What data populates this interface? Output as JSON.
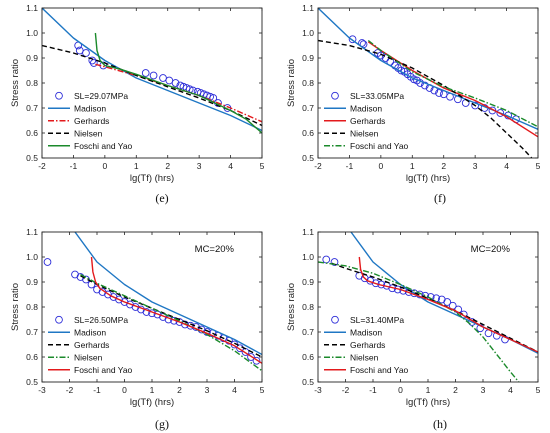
{
  "figure": {
    "captions": [
      "(e)",
      "(f)",
      "(g)",
      "(h)"
    ]
  },
  "chart_data": [
    {
      "id": "e",
      "type": "line",
      "caption": "(e)",
      "xlabel": "lg(Tf) (hrs)",
      "ylabel": "Stress ratio",
      "xlim": [
        -2,
        5
      ],
      "ylim": [
        0.5,
        1.1
      ],
      "xticks": [
        "-2",
        "-1",
        "0",
        "1",
        "2",
        "3",
        "4",
        "5"
      ],
      "yticks": [
        "0.5",
        "0.6",
        "0.7",
        "0.8",
        "0.9",
        "1.0",
        "1.1"
      ],
      "annotation": "",
      "legend_position": "lower-left",
      "points": {
        "name": "SL=29.07MPa",
        "color": "#2b2bd8",
        "x": [
          -0.85,
          -0.8,
          -0.6,
          -0.4,
          -0.35,
          -0.05,
          1.3,
          1.55,
          1.85,
          2.05,
          2.25,
          2.4,
          2.5,
          2.6,
          2.7,
          2.8,
          2.95,
          3.05,
          3.15,
          3.25,
          3.35,
          3.45,
          3.6,
          3.9
        ],
        "y": [
          0.95,
          0.93,
          0.92,
          0.89,
          0.88,
          0.87,
          0.84,
          0.83,
          0.82,
          0.81,
          0.8,
          0.79,
          0.785,
          0.78,
          0.775,
          0.77,
          0.765,
          0.76,
          0.755,
          0.75,
          0.745,
          0.74,
          0.72,
          0.7
        ]
      },
      "series": [
        {
          "name": "Madison",
          "color": "#1f77c4",
          "dash": "",
          "x": [
            -2,
            -1,
            0,
            1,
            2,
            3,
            4,
            5
          ],
          "y": [
            1.1,
            0.98,
            0.89,
            0.82,
            0.77,
            0.72,
            0.67,
            0.61
          ]
        },
        {
          "name": "Gerhards",
          "color": "#e31a1c",
          "dash": "6,2,1.5,2",
          "x": [
            -0.3,
            0,
            1,
            2,
            3,
            4,
            5
          ],
          "y": [
            0.875,
            0.865,
            0.83,
            0.79,
            0.75,
            0.7,
            0.645
          ]
        },
        {
          "name": "Nielsen",
          "color": "#000000",
          "dash": "5,3",
          "x": [
            -2,
            -1,
            0,
            1,
            2,
            3,
            4,
            5
          ],
          "y": [
            0.95,
            0.92,
            0.88,
            0.83,
            0.785,
            0.74,
            0.69,
            0.63
          ]
        },
        {
          "name": "Foschi and Yao",
          "color": "#1b8a2b",
          "dash": "",
          "x": [
            -0.3,
            -0.25,
            -0.15,
            0,
            0.5,
            1,
            2,
            3,
            4,
            4.5,
            5
          ],
          "y": [
            1.0,
            0.93,
            0.89,
            0.87,
            0.855,
            0.835,
            0.79,
            0.75,
            0.69,
            0.655,
            0.6
          ]
        }
      ]
    },
    {
      "id": "f",
      "type": "line",
      "caption": "(f)",
      "xlabel": "lg(Tf) (hrs)",
      "ylabel": "Stress ratio",
      "xlim": [
        -2,
        5
      ],
      "ylim": [
        0.5,
        1.1
      ],
      "xticks": [
        "-2",
        "-1",
        "0",
        "1",
        "2",
        "3",
        "4",
        "5"
      ],
      "yticks": [
        "0.5",
        "0.6",
        "0.7",
        "0.8",
        "0.9",
        "1.0",
        "1.1"
      ],
      "annotation": "",
      "legend_position": "lower-left",
      "points": {
        "name": "SL=33.05MPa",
        "color": "#2b2bd8",
        "x": [
          -0.9,
          -0.6,
          -0.55,
          -0.1,
          0.0,
          0.15,
          0.3,
          0.45,
          0.55,
          0.65,
          0.75,
          0.85,
          0.95,
          1.05,
          1.15,
          1.25,
          1.4,
          1.55,
          1.7,
          1.85,
          2.0,
          2.2,
          2.45,
          2.7,
          3.0,
          3.3,
          3.55,
          3.8,
          4.05,
          4.3
        ],
        "y": [
          0.975,
          0.96,
          0.955,
          0.92,
          0.91,
          0.9,
          0.885,
          0.87,
          0.86,
          0.85,
          0.845,
          0.835,
          0.825,
          0.815,
          0.81,
          0.8,
          0.79,
          0.78,
          0.77,
          0.76,
          0.755,
          0.745,
          0.735,
          0.72,
          0.71,
          0.7,
          0.69,
          0.68,
          0.67,
          0.655
        ]
      },
      "series": [
        {
          "name": "Madison",
          "color": "#1f77c4",
          "dash": "",
          "x": [
            -2,
            -1,
            0,
            1,
            2,
            3,
            4,
            5
          ],
          "y": [
            1.1,
            0.98,
            0.89,
            0.82,
            0.77,
            0.72,
            0.67,
            0.615
          ]
        },
        {
          "name": "Gerhards",
          "color": "#e31a1c",
          "dash": "",
          "x": [
            -0.4,
            0,
            1,
            2,
            3,
            4,
            5
          ],
          "y": [
            0.965,
            0.93,
            0.85,
            0.78,
            0.73,
            0.665,
            0.585
          ]
        },
        {
          "name": "Nielsen",
          "color": "#000000",
          "dash": "5,3",
          "x": [
            -2,
            -1,
            0,
            1,
            2,
            2.5,
            3,
            3.5,
            4,
            4.5,
            4.8
          ],
          "y": [
            0.97,
            0.95,
            0.915,
            0.86,
            0.79,
            0.75,
            0.71,
            0.66,
            0.6,
            0.54,
            0.5
          ]
        },
        {
          "name": "Foschi and Yao",
          "color": "#1b8a2b",
          "dash": "6,2,1.5,2",
          "x": [
            -0.4,
            0,
            1,
            2,
            3,
            4,
            5
          ],
          "y": [
            0.97,
            0.93,
            0.845,
            0.785,
            0.74,
            0.69,
            0.625
          ]
        }
      ]
    },
    {
      "id": "g",
      "type": "line",
      "caption": "(g)",
      "xlabel": "lg(Tf) (hrs)",
      "ylabel": "Stress ratio",
      "xlim": [
        -3,
        5
      ],
      "ylim": [
        0.5,
        1.1
      ],
      "xticks": [
        "-3",
        "-2",
        "-1",
        "0",
        "1",
        "2",
        "3",
        "4",
        "5"
      ],
      "yticks": [
        "0.5",
        "0.6",
        "0.7",
        "0.8",
        "0.9",
        "1.0",
        "1.1"
      ],
      "annotation": "MC=20%",
      "legend_position": "lower-left",
      "points": {
        "name": "SL=26.50MPa",
        "color": "#2b2bd8",
        "x": [
          -2.8,
          -1.8,
          -1.6,
          -1.4,
          -1.2,
          -1.0,
          -0.8,
          -0.6,
          -0.4,
          -0.2,
          0.0,
          0.2,
          0.4,
          0.6,
          0.8,
          1.0,
          1.2,
          1.4,
          1.6,
          1.8,
          2.0,
          2.2,
          2.4,
          2.6,
          2.8,
          3.0,
          3.2,
          3.4,
          3.6,
          3.8,
          4.0,
          4.2,
          4.4,
          4.6,
          4.8
        ],
        "y": [
          0.98,
          0.93,
          0.92,
          0.91,
          0.89,
          0.87,
          0.86,
          0.85,
          0.84,
          0.83,
          0.82,
          0.81,
          0.8,
          0.79,
          0.78,
          0.775,
          0.77,
          0.76,
          0.75,
          0.745,
          0.74,
          0.73,
          0.725,
          0.72,
          0.71,
          0.7,
          0.695,
          0.685,
          0.675,
          0.665,
          0.65,
          0.635,
          0.62,
          0.6,
          0.585
        ]
      },
      "series": [
        {
          "name": "Madison",
          "color": "#1f77c4",
          "dash": "",
          "x": [
            -1.8,
            -1,
            0,
            1,
            2,
            3,
            4,
            5
          ],
          "y": [
            1.1,
            0.98,
            0.89,
            0.82,
            0.77,
            0.72,
            0.67,
            0.61
          ]
        },
        {
          "name": "Gerhards",
          "color": "#000000",
          "dash": "5,3",
          "x": [
            -1.6,
            -1,
            0,
            1,
            2,
            3,
            4,
            5
          ],
          "y": [
            0.925,
            0.89,
            0.84,
            0.795,
            0.75,
            0.705,
            0.655,
            0.6
          ]
        },
        {
          "name": "Nielsen",
          "color": "#1b8a2b",
          "dash": "6,2,1.5,2",
          "x": [
            -1.6,
            -1,
            0,
            1,
            2,
            3,
            4,
            5
          ],
          "y": [
            0.93,
            0.895,
            0.845,
            0.795,
            0.745,
            0.69,
            0.625,
            0.545
          ]
        },
        {
          "name": "Foschi and Yao",
          "color": "#e31a1c",
          "dash": "",
          "x": [
            -1.2,
            -1.15,
            -1.05,
            -0.9,
            -0.5,
            0,
            1,
            2,
            3,
            4,
            5
          ],
          "y": [
            1.0,
            0.94,
            0.9,
            0.875,
            0.845,
            0.82,
            0.78,
            0.74,
            0.695,
            0.645,
            0.575
          ]
        }
      ]
    },
    {
      "id": "h",
      "type": "line",
      "caption": "(h)",
      "xlabel": "lg(Tf) (hrs)",
      "ylabel": "Stress ratio",
      "xlim": [
        -3,
        5
      ],
      "ylim": [
        0.5,
        1.1
      ],
      "xticks": [
        "-3",
        "-2",
        "-1",
        "0",
        "1",
        "2",
        "3",
        "4",
        "5"
      ],
      "yticks": [
        "0.5",
        "0.6",
        "0.7",
        "0.8",
        "0.9",
        "1.0",
        "1.1"
      ],
      "annotation": "MC=20%",
      "legend_position": "lower-left",
      "points": {
        "name": "SL=31.40MPa",
        "color": "#2b2bd8",
        "x": [
          -2.7,
          -2.4,
          -1.5,
          -1.3,
          -1.1,
          -0.9,
          -0.7,
          -0.5,
          -0.3,
          -0.1,
          0.1,
          0.3,
          0.5,
          0.7,
          0.9,
          1.1,
          1.3,
          1.5,
          1.7,
          1.9,
          2.1,
          2.3,
          2.6,
          2.9,
          3.2,
          3.5,
          3.8
        ],
        "y": [
          0.99,
          0.98,
          0.925,
          0.915,
          0.905,
          0.895,
          0.89,
          0.885,
          0.875,
          0.87,
          0.865,
          0.86,
          0.855,
          0.85,
          0.845,
          0.84,
          0.835,
          0.83,
          0.82,
          0.805,
          0.79,
          0.77,
          0.74,
          0.715,
          0.695,
          0.685,
          0.67
        ]
      },
      "series": [
        {
          "name": "Madison",
          "color": "#1f77c4",
          "dash": "",
          "x": [
            -1.8,
            -1,
            0,
            1,
            2,
            3,
            4,
            5
          ],
          "y": [
            1.1,
            0.98,
            0.89,
            0.82,
            0.77,
            0.72,
            0.67,
            0.615
          ]
        },
        {
          "name": "Gerhards",
          "color": "#000000",
          "dash": "5,3",
          "x": [
            -2.5,
            -2,
            -1,
            0,
            1,
            2,
            3,
            4,
            5
          ],
          "y": [
            0.975,
            0.955,
            0.92,
            0.88,
            0.835,
            0.785,
            0.73,
            0.675,
            0.62
          ]
        },
        {
          "name": "Nielsen",
          "color": "#1b8a2b",
          "dash": "6,2,1.5,2",
          "x": [
            -3,
            -2,
            -1,
            0,
            1,
            2,
            2.5,
            3,
            3.5,
            4,
            4.3
          ],
          "y": [
            0.98,
            0.965,
            0.935,
            0.89,
            0.84,
            0.78,
            0.735,
            0.68,
            0.61,
            0.54,
            0.5
          ]
        },
        {
          "name": "Foschi and Yao",
          "color": "#e31a1c",
          "dash": "",
          "x": [
            -1.5,
            -1.45,
            -1.35,
            -1.2,
            -0.8,
            0,
            1,
            2,
            3,
            4,
            5
          ],
          "y": [
            1.0,
            0.95,
            0.92,
            0.905,
            0.89,
            0.87,
            0.83,
            0.785,
            0.72,
            0.67,
            0.62
          ]
        }
      ]
    }
  ]
}
